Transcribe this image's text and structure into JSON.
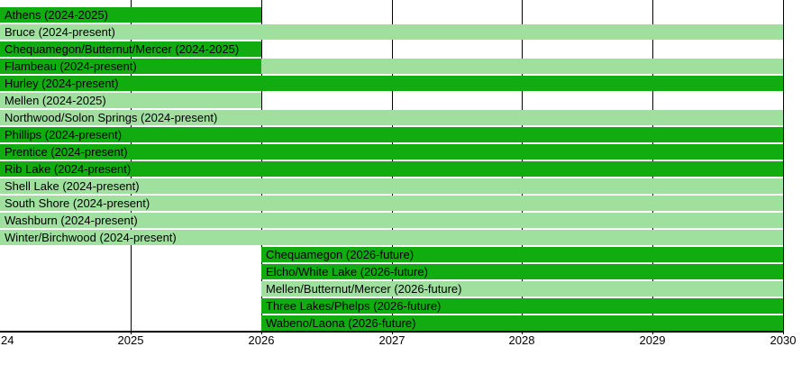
{
  "chart_data": {
    "type": "timeline",
    "title": "",
    "orientation": "horizontal",
    "x_axis": {
      "min": 2024,
      "max": 2030,
      "gridlines": true,
      "ticks": [
        {
          "year": 2024,
          "label": "24"
        },
        {
          "year": 2025,
          "label": "2025"
        },
        {
          "year": 2026,
          "label": "2026"
        },
        {
          "year": 2027,
          "label": "2027"
        },
        {
          "year": 2028,
          "label": "2028"
        },
        {
          "year": 2029,
          "label": "2029"
        },
        {
          "year": 2030,
          "label": "2030"
        }
      ]
    },
    "colors": {
      "dark": "#10ac10",
      "light": "#9fe09f",
      "axis": "#000000",
      "text": "#000000",
      "background": "#ffffff"
    },
    "rows": [
      {
        "label": "Athens (2024-2025)",
        "segments": [
          {
            "from": 2024,
            "to": 2026,
            "color": "dark"
          }
        ]
      },
      {
        "label": "Bruce (2024-present)",
        "segments": [
          {
            "from": 2024,
            "to": 2030,
            "color": "light"
          }
        ]
      },
      {
        "label": "Chequamegon/Butternut/Mercer (2024-2025)",
        "segments": [
          {
            "from": 2024,
            "to": 2026,
            "color": "dark"
          }
        ]
      },
      {
        "label": "Flambeau (2024-present)",
        "segments": [
          {
            "from": 2024,
            "to": 2026,
            "color": "dark"
          },
          {
            "from": 2026,
            "to": 2030,
            "color": "light"
          }
        ]
      },
      {
        "label": "Hurley (2024-present)",
        "segments": [
          {
            "from": 2024,
            "to": 2030,
            "color": "dark"
          }
        ]
      },
      {
        "label": "Mellen (2024-2025)",
        "segments": [
          {
            "from": 2024,
            "to": 2026,
            "color": "light"
          }
        ]
      },
      {
        "label": "Northwood/Solon Springs (2024-present)",
        "segments": [
          {
            "from": 2024,
            "to": 2030,
            "color": "light"
          }
        ]
      },
      {
        "label": "Phillips (2024-present)",
        "segments": [
          {
            "from": 2024,
            "to": 2030,
            "color": "dark"
          }
        ]
      },
      {
        "label": "Prentice (2024-present)",
        "segments": [
          {
            "from": 2024,
            "to": 2030,
            "color": "dark"
          }
        ]
      },
      {
        "label": "Rib Lake (2024-present)",
        "segments": [
          {
            "from": 2024,
            "to": 2030,
            "color": "dark"
          }
        ]
      },
      {
        "label": "Shell Lake (2024-present)",
        "segments": [
          {
            "from": 2024,
            "to": 2030,
            "color": "light"
          }
        ]
      },
      {
        "label": "South Shore (2024-present)",
        "segments": [
          {
            "from": 2024,
            "to": 2030,
            "color": "light"
          }
        ]
      },
      {
        "label": "Washburn (2024-present)",
        "segments": [
          {
            "from": 2024,
            "to": 2030,
            "color": "light"
          }
        ]
      },
      {
        "label": "Winter/Birchwood (2024-present)",
        "segments": [
          {
            "from": 2024,
            "to": 2030,
            "color": "light"
          }
        ]
      },
      {
        "label": "Chequamegon (2026-future)",
        "segments": [
          {
            "from": 2026,
            "to": 2030,
            "color": "dark"
          }
        ]
      },
      {
        "label": "Elcho/White Lake (2026-future)",
        "segments": [
          {
            "from": 2026,
            "to": 2030,
            "color": "dark"
          }
        ]
      },
      {
        "label": "Mellen/Butternut/Mercer (2026-future)",
        "segments": [
          {
            "from": 2026,
            "to": 2030,
            "color": "light"
          }
        ]
      },
      {
        "label": "Three Lakes/Phelps (2026-future)",
        "segments": [
          {
            "from": 2026,
            "to": 2030,
            "color": "dark"
          }
        ]
      },
      {
        "label": "Wabeno/Laona (2026-future)",
        "segments": [
          {
            "from": 2026,
            "to": 2030,
            "color": "dark"
          }
        ]
      }
    ]
  }
}
